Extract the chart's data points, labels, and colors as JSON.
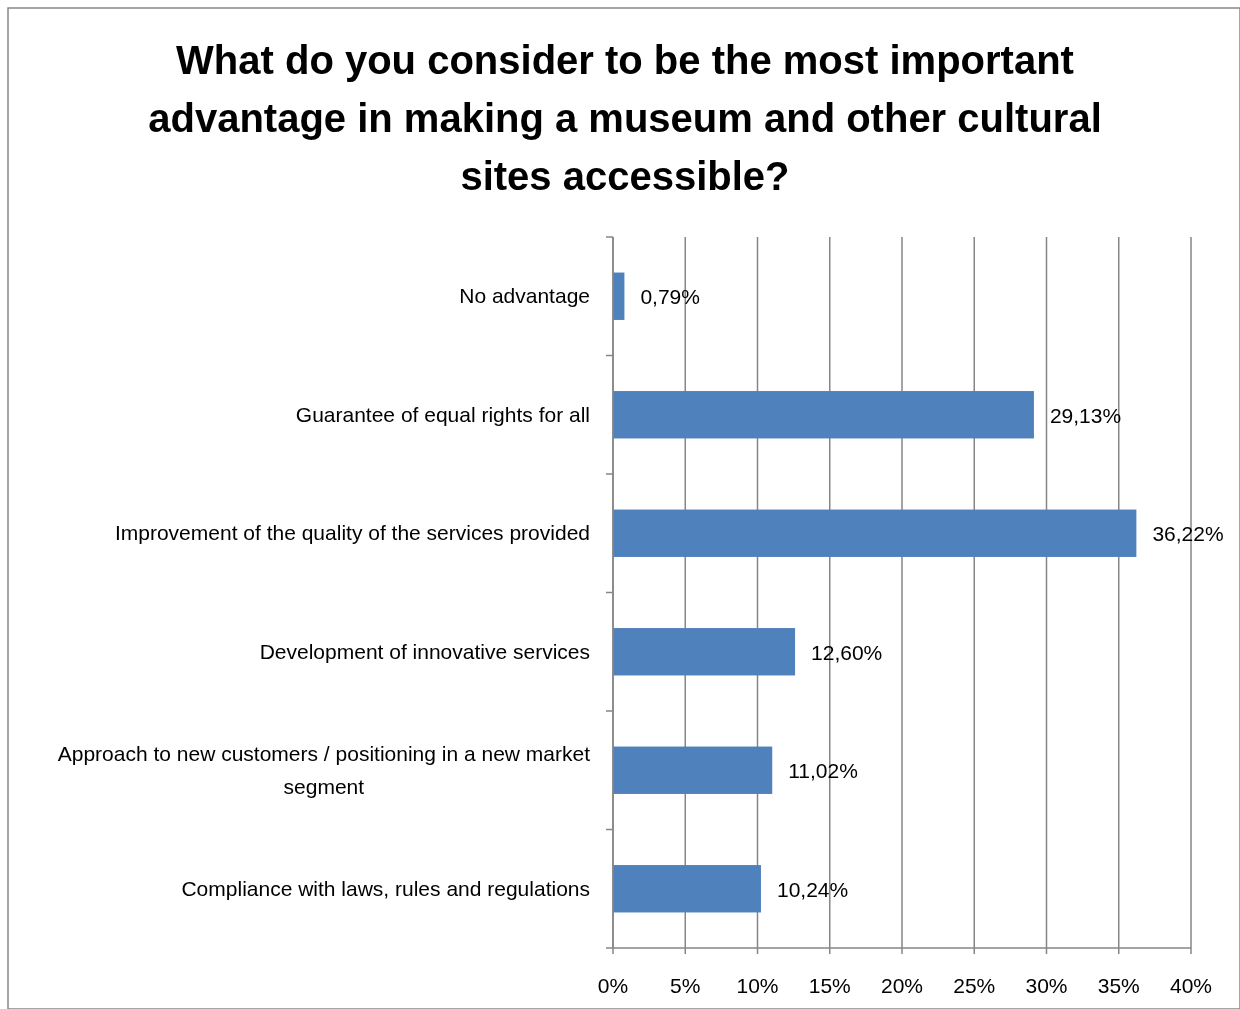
{
  "chart_data": {
    "type": "bar",
    "orientation": "horizontal",
    "title": "What do you consider to be the most important advantage in making a museum and other cultural sites accessible?",
    "categories": [
      "No advantage",
      "Guarantee of equal rights for all",
      "Improvement of the quality of the services provided",
      "Development of innovative services",
      "Approach to new customers / positioning in a new market segment",
      "Compliance with laws, rules and regulations"
    ],
    "values": [
      0.79,
      29.13,
      36.22,
      12.6,
      11.02,
      10.24
    ],
    "value_labels": [
      "0,79%",
      "29,13%",
      "36,22%",
      "12,60%",
      "11,02%",
      "10,24%"
    ],
    "color": "#4f81bd",
    "xlim": [
      0,
      40
    ],
    "xticks": [
      {
        "value": 0,
        "label": "0%"
      },
      {
        "value": 5,
        "label": "5%"
      },
      {
        "value": 10,
        "label": "10%"
      },
      {
        "value": 15,
        "label": "15%"
      },
      {
        "value": 20,
        "label": "20%"
      },
      {
        "value": 25,
        "label": "25%"
      },
      {
        "value": 30,
        "label": "30%"
      },
      {
        "value": 35,
        "label": "35%"
      },
      {
        "value": 40,
        "label": "40%"
      }
    ],
    "grid": "x"
  }
}
